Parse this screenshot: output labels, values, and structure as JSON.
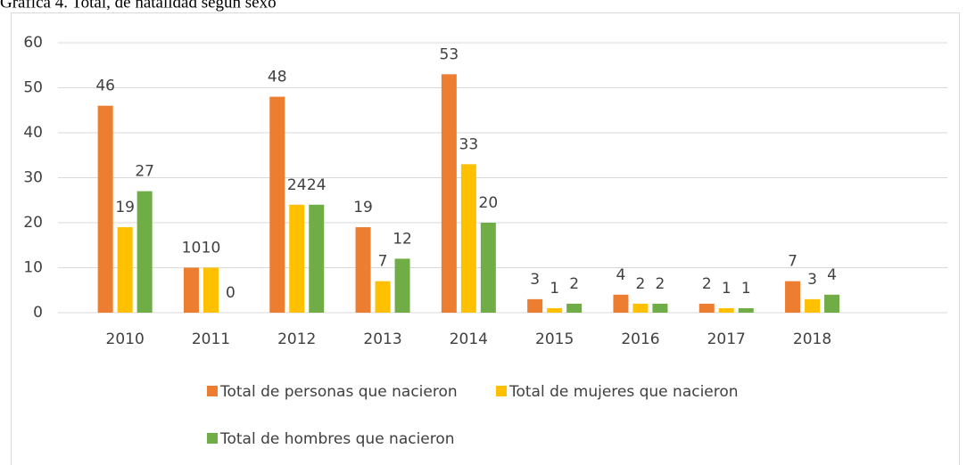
{
  "chart_data": {
    "type": "bar",
    "title": "Gráfica 4. Total, de natalidad según sexo",
    "categories": [
      "2010",
      "2011",
      "2012",
      "2013",
      "2014",
      "2015",
      "2016",
      "2017",
      "2018",
      null
    ],
    "series": [
      {
        "name": "Total de personas que nacieron",
        "color": "#ed7d31",
        "values": [
          46,
          10,
          48,
          19,
          53,
          3,
          4,
          2,
          7,
          null
        ]
      },
      {
        "name": "Total de mujeres que nacieron",
        "color": "#ffc000",
        "values": [
          19,
          10,
          24,
          7,
          33,
          1,
          2,
          1,
          3,
          null
        ]
      },
      {
        "name": "Total de hombres que nacieron",
        "color": "#70ad47",
        "values": [
          27,
          0,
          24,
          12,
          20,
          2,
          2,
          1,
          4,
          null
        ]
      }
    ],
    "ylim": [
      0,
      60
    ],
    "yticks": [
      0,
      10,
      20,
      30,
      40,
      50,
      60
    ],
    "grid": true,
    "legend": "bottom"
  }
}
